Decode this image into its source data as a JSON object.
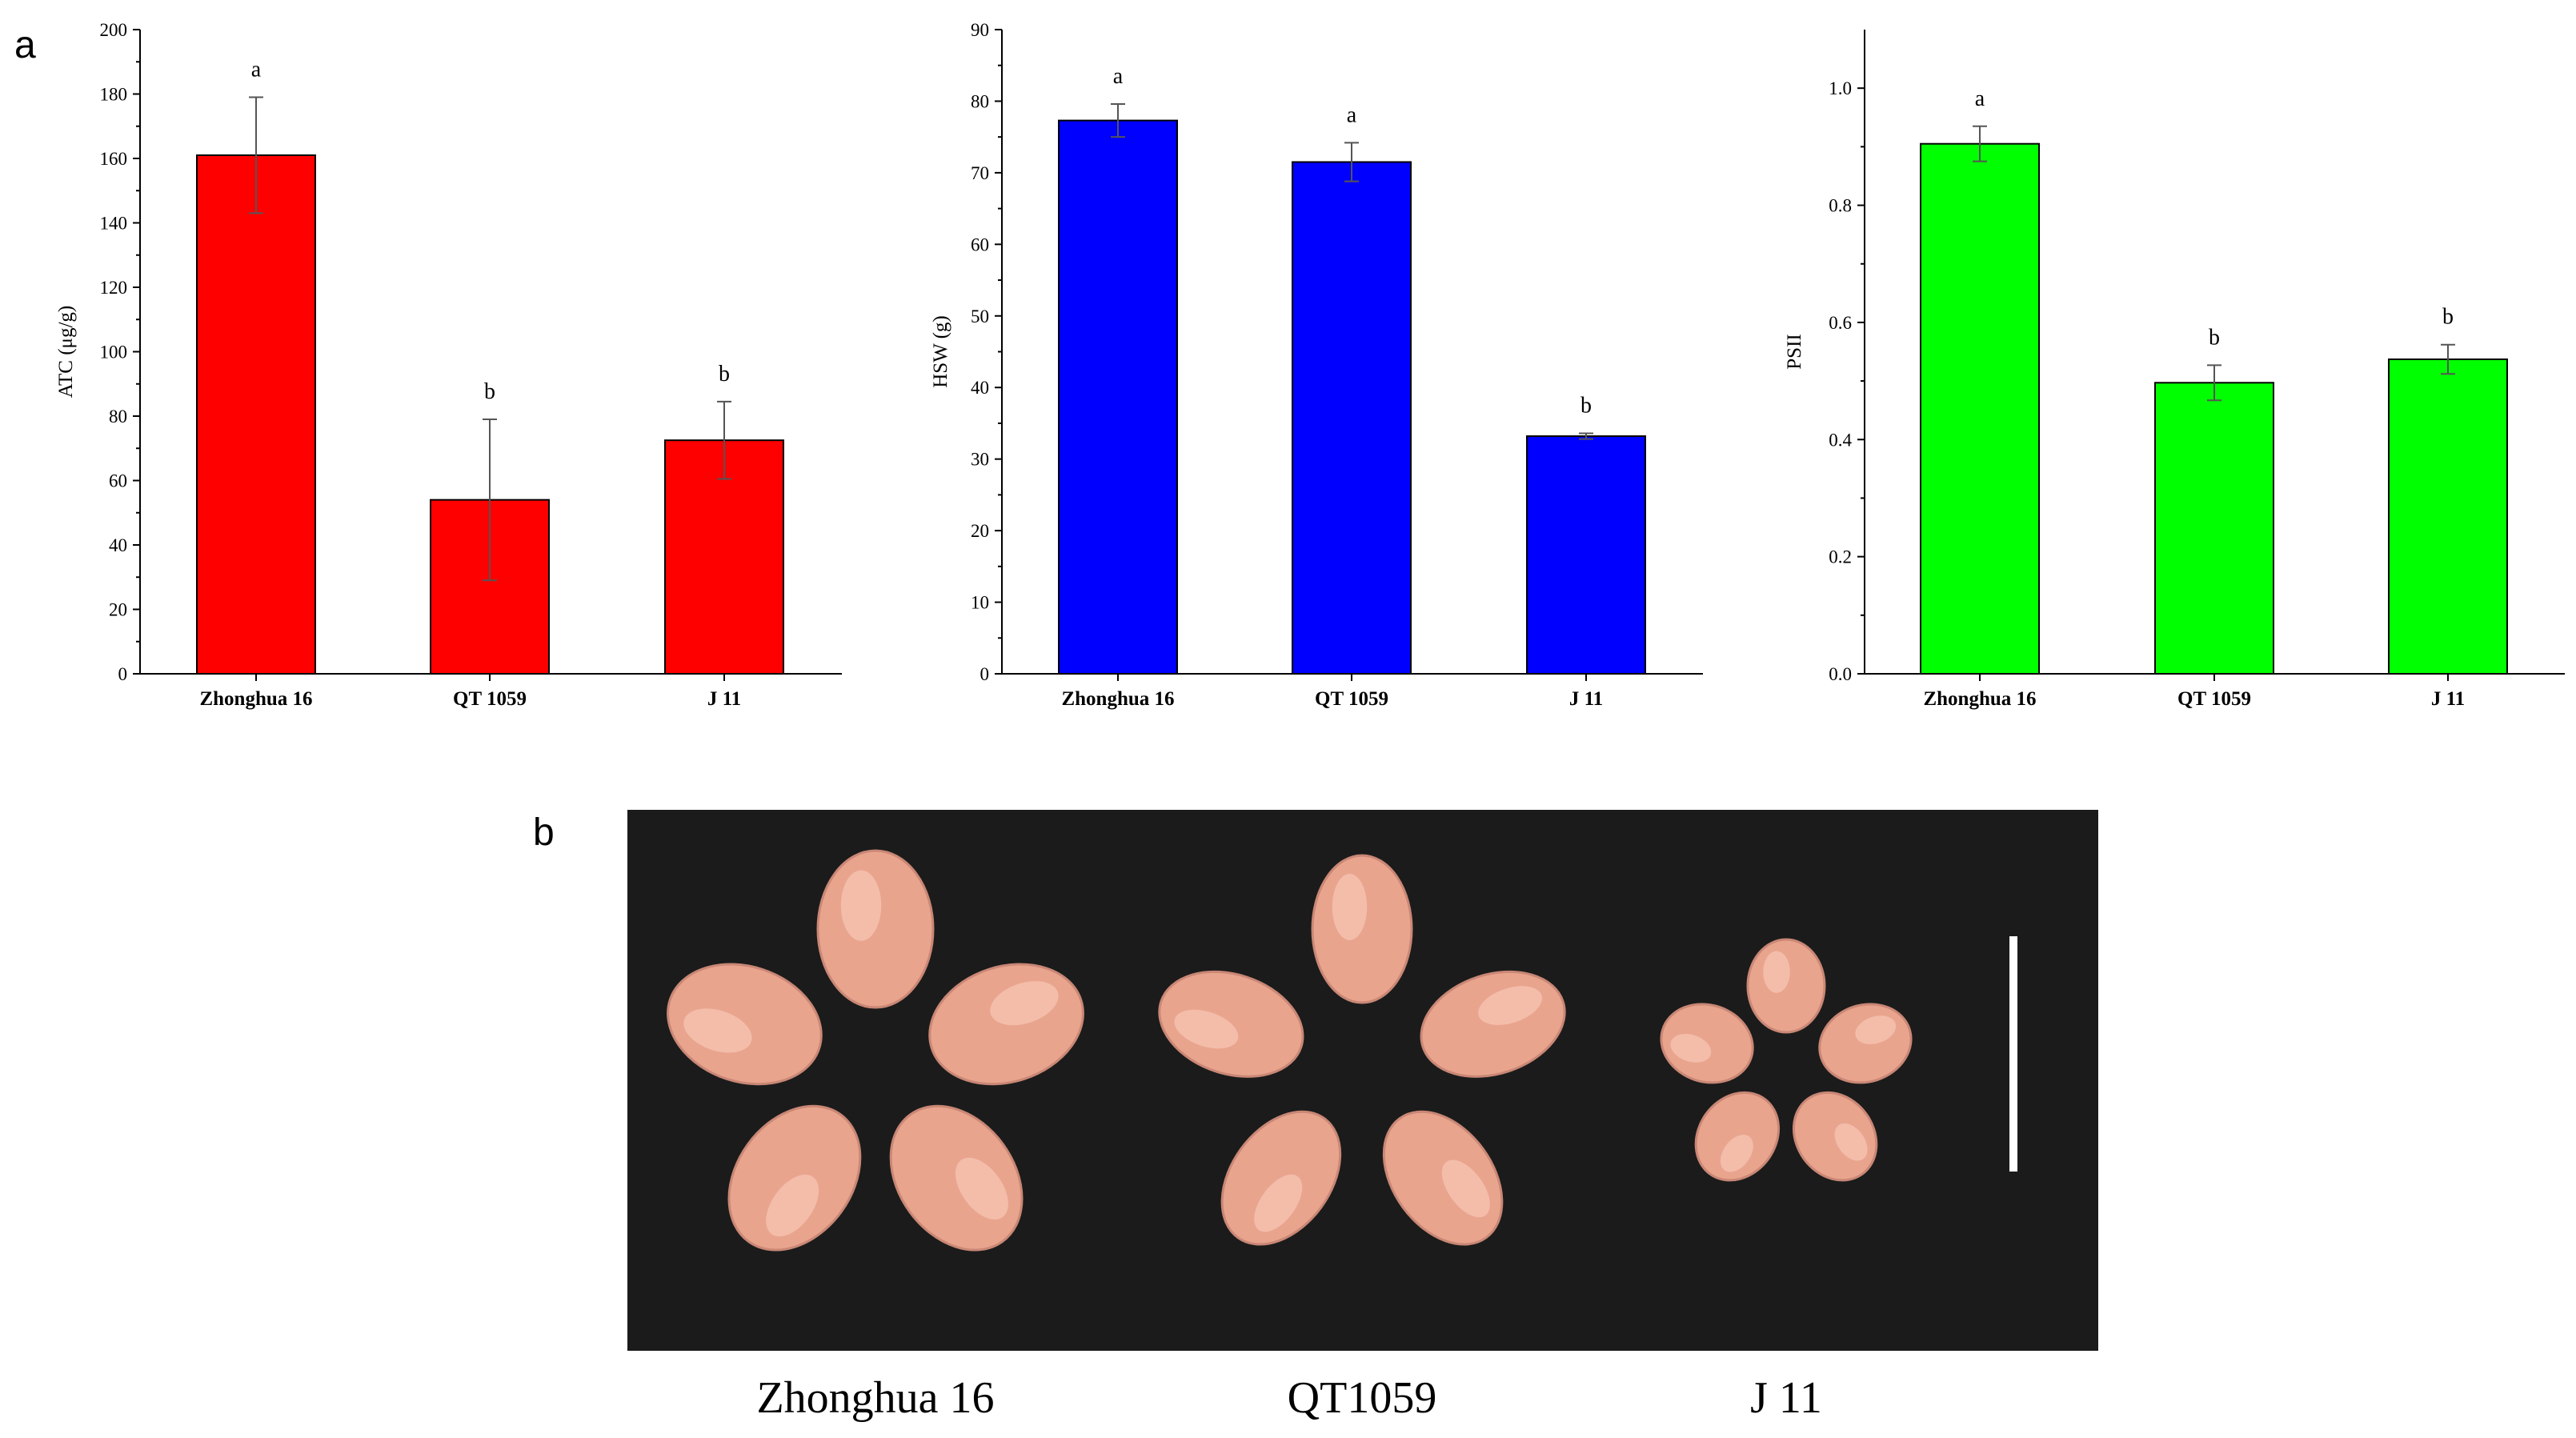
{
  "figure": {
    "panel_a_label": "a",
    "panel_b_label": "b"
  },
  "colors": {
    "atc": "#ff0000",
    "hsw": "#0000ff",
    "psii": "#00ff00",
    "photo_bg": "#1b1b1b",
    "seed": "#e9a48e",
    "scale_bar": "#ffffff"
  },
  "chart_data": [
    {
      "type": "bar",
      "categories": [
        "Zhonghua 16",
        "QT 1059",
        "J 11"
      ],
      "values": [
        161,
        54,
        72.5
      ],
      "errors": [
        18,
        25,
        12
      ],
      "significance": [
        "a",
        "b",
        "b"
      ],
      "ylabel": "ATC (μg/g)",
      "xlabel": "",
      "ylim": [
        0,
        200
      ],
      "yticks": [
        0,
        20,
        40,
        60,
        80,
        100,
        120,
        140,
        160,
        180,
        200
      ],
      "ytick_labels": [
        "0",
        "20",
        "40",
        "60",
        "80",
        "100",
        "120",
        "140",
        "160",
        "180",
        "200"
      ],
      "grid": false,
      "color_key": "atc"
    },
    {
      "type": "bar",
      "categories": [
        "Zhonghua 16",
        "QT 1059",
        "J 11"
      ],
      "values": [
        77.3,
        71.5,
        33.2
      ],
      "errors": [
        2.3,
        2.7,
        0.4
      ],
      "significance": [
        "a",
        "a",
        "b"
      ],
      "ylabel": "HSW (g)",
      "xlabel": "",
      "ylim": [
        0,
        90
      ],
      "yticks": [
        0,
        10,
        20,
        30,
        40,
        50,
        60,
        70,
        80,
        90
      ],
      "ytick_labels": [
        "0",
        "10",
        "20",
        "30",
        "40",
        "50",
        "60",
        "70",
        "80",
        "90"
      ],
      "grid": false,
      "color_key": "hsw"
    },
    {
      "type": "bar",
      "categories": [
        "Zhonghua 16",
        "QT 1059",
        "J 11"
      ],
      "values": [
        0.905,
        0.497,
        0.537
      ],
      "errors": [
        0.03,
        0.03,
        0.025
      ],
      "significance": [
        "a",
        "b",
        "b"
      ],
      "ylabel": "PSII",
      "xlabel": "",
      "ylim": [
        0,
        1.1
      ],
      "yticks": [
        0,
        0.2,
        0.4,
        0.6,
        0.8,
        1.0
      ],
      "ytick_labels": [
        "0.0",
        "0.2",
        "0.4",
        "0.6",
        "0.8",
        "1.0"
      ],
      "grid": false,
      "color_key": "psii"
    }
  ],
  "photo": {
    "labels": [
      "Zhonghua 16",
      "QT1059",
      "J 11"
    ],
    "icon": "peanut-seed-photo-icon"
  }
}
